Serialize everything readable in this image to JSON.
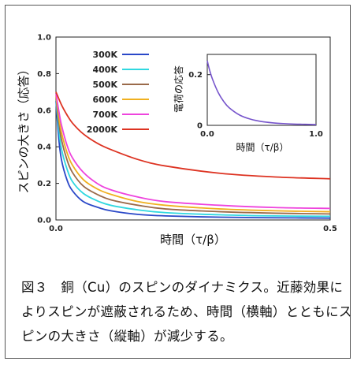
{
  "caption": "図３　銅（Cu）のスピンのダイナミクス。近藤効果によりスピンが遮蔽されるため、時間（横軸）とともにスピンの大きさ（縦軸）が減少する。",
  "chart_data": [
    {
      "type": "line",
      "xlabel": "時間（τ/β）",
      "ylabel": "スピンの大きさ（応答）",
      "xlim": [
        0.0,
        0.5
      ],
      "ylim": [
        0.0,
        1.0
      ],
      "x_ticks": [
        "0.0",
        "0.5"
      ],
      "y_ticks": [
        "0.0",
        "0.2",
        "0.4",
        "0.6",
        "0.8",
        "1.0"
      ],
      "legend_position": "top-left",
      "series": [
        {
          "name": "300K",
          "color": "#2a48c8",
          "x": [
            0.0,
            0.005,
            0.01,
            0.02,
            0.03,
            0.05,
            0.075,
            0.1,
            0.15,
            0.2,
            0.3,
            0.4,
            0.5
          ],
          "y": [
            0.65,
            0.45,
            0.33,
            0.22,
            0.16,
            0.1,
            0.07,
            0.05,
            0.03,
            0.022,
            0.015,
            0.012,
            0.01
          ]
        },
        {
          "name": "400K",
          "color": "#30d8e0",
          "x": [
            0.0,
            0.005,
            0.01,
            0.02,
            0.03,
            0.05,
            0.075,
            0.1,
            0.15,
            0.2,
            0.3,
            0.4,
            0.5
          ],
          "y": [
            0.66,
            0.5,
            0.39,
            0.28,
            0.21,
            0.145,
            0.105,
            0.08,
            0.055,
            0.04,
            0.028,
            0.022,
            0.02
          ]
        },
        {
          "name": "500K",
          "color": "#9a6a4a",
          "x": [
            0.0,
            0.005,
            0.01,
            0.02,
            0.03,
            0.05,
            0.075,
            0.1,
            0.15,
            0.2,
            0.3,
            0.4,
            0.5
          ],
          "y": [
            0.67,
            0.54,
            0.44,
            0.33,
            0.26,
            0.185,
            0.14,
            0.11,
            0.08,
            0.06,
            0.045,
            0.037,
            0.033
          ]
        },
        {
          "name": "600K",
          "color": "#f0b020",
          "x": [
            0.0,
            0.005,
            0.01,
            0.02,
            0.03,
            0.05,
            0.075,
            0.1,
            0.15,
            0.2,
            0.3,
            0.4,
            0.5
          ],
          "y": [
            0.68,
            0.57,
            0.48,
            0.37,
            0.3,
            0.22,
            0.17,
            0.14,
            0.1,
            0.08,
            0.06,
            0.05,
            0.045
          ]
        },
        {
          "name": "700K",
          "color": "#ee44dd",
          "x": [
            0.0,
            0.005,
            0.01,
            0.02,
            0.03,
            0.05,
            0.075,
            0.1,
            0.15,
            0.2,
            0.3,
            0.4,
            0.5
          ],
          "y": [
            0.69,
            0.6,
            0.52,
            0.41,
            0.34,
            0.26,
            0.2,
            0.165,
            0.125,
            0.1,
            0.08,
            0.068,
            0.063
          ]
        },
        {
          "name": "2000K",
          "color": "#dd3322",
          "x": [
            0.0,
            0.01,
            0.02,
            0.03,
            0.05,
            0.075,
            0.1,
            0.15,
            0.2,
            0.3,
            0.4,
            0.5
          ],
          "y": [
            0.7,
            0.63,
            0.575,
            0.53,
            0.47,
            0.42,
            0.385,
            0.33,
            0.295,
            0.255,
            0.235,
            0.225
          ]
        }
      ]
    },
    {
      "type": "line",
      "xlabel": "時間（τ/β）",
      "ylabel": "電荷の応答",
      "xlim": [
        0.0,
        1.0
      ],
      "ylim": [
        0.0,
        0.28
      ],
      "x_ticks": [
        "0.0",
        "1.0"
      ],
      "y_ticks": [
        "0",
        "0.2"
      ],
      "series": [
        {
          "color": "#7755cc",
          "x": [
            0.0,
            0.02,
            0.05,
            0.1,
            0.15,
            0.2,
            0.3,
            0.4,
            0.5,
            0.6,
            0.7,
            0.8,
            0.9,
            1.0
          ],
          "y": [
            0.255,
            0.22,
            0.18,
            0.13,
            0.095,
            0.07,
            0.04,
            0.024,
            0.015,
            0.01,
            0.007,
            0.005,
            0.004,
            0.003
          ]
        }
      ]
    }
  ]
}
